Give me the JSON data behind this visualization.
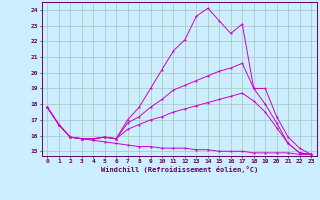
{
  "xlabel": "Windchill (Refroidissement éolien,°C)",
  "bg_color": "#cceeff",
  "grid_color": "#aacccc",
  "line_color": "#cc00cc",
  "xlim": [
    -0.5,
    23.5
  ],
  "ylim": [
    14.7,
    24.5
  ],
  "xticks": [
    0,
    1,
    2,
    3,
    4,
    5,
    6,
    7,
    8,
    9,
    10,
    11,
    12,
    13,
    14,
    15,
    16,
    17,
    18,
    19,
    20,
    21,
    22,
    23
  ],
  "yticks": [
    15,
    16,
    17,
    18,
    19,
    20,
    21,
    22,
    23,
    24
  ],
  "curves": [
    {
      "x": [
        0,
        1,
        2,
        3,
        4,
        5,
        6,
        7,
        8,
        9,
        10,
        11,
        12,
        13,
        14,
        15,
        16,
        17,
        18,
        19,
        20,
        21,
        22,
        23
      ],
      "y": [
        17.8,
        16.7,
        15.9,
        15.8,
        15.8,
        15.9,
        15.8,
        17.0,
        17.8,
        19.0,
        20.2,
        21.4,
        22.1,
        23.6,
        24.1,
        23.3,
        22.5,
        23.1,
        19.0,
        19.0,
        17.2,
        15.9,
        15.2,
        14.8
      ]
    },
    {
      "x": [
        0,
        1,
        2,
        3,
        4,
        5,
        6,
        7,
        8,
        9,
        10,
        11,
        12,
        13,
        14,
        15,
        16,
        17,
        18,
        19,
        20,
        21,
        22,
        23
      ],
      "y": [
        17.8,
        16.7,
        15.9,
        15.8,
        15.8,
        15.9,
        15.8,
        16.8,
        17.2,
        17.8,
        18.3,
        18.9,
        19.2,
        19.5,
        19.8,
        20.1,
        20.3,
        20.6,
        19.0,
        18.0,
        16.8,
        15.5,
        14.9,
        14.8
      ]
    },
    {
      "x": [
        0,
        1,
        2,
        3,
        4,
        5,
        6,
        7,
        8,
        9,
        10,
        11,
        12,
        13,
        14,
        15,
        16,
        17,
        18,
        19,
        20,
        21,
        22,
        23
      ],
      "y": [
        17.8,
        16.7,
        15.9,
        15.8,
        15.8,
        15.9,
        15.8,
        16.4,
        16.7,
        17.0,
        17.2,
        17.5,
        17.7,
        17.9,
        18.1,
        18.3,
        18.5,
        18.7,
        18.2,
        17.5,
        16.5,
        15.5,
        14.9,
        14.8
      ]
    },
    {
      "x": [
        0,
        1,
        2,
        3,
        4,
        5,
        6,
        7,
        8,
        9,
        10,
        11,
        12,
        13,
        14,
        15,
        16,
        17,
        18,
        19,
        20,
        21,
        22,
        23
      ],
      "y": [
        17.8,
        16.7,
        15.9,
        15.8,
        15.7,
        15.6,
        15.5,
        15.4,
        15.3,
        15.3,
        15.2,
        15.2,
        15.2,
        15.1,
        15.1,
        15.0,
        15.0,
        15.0,
        14.9,
        14.9,
        14.9,
        14.9,
        14.8,
        14.8
      ]
    }
  ]
}
